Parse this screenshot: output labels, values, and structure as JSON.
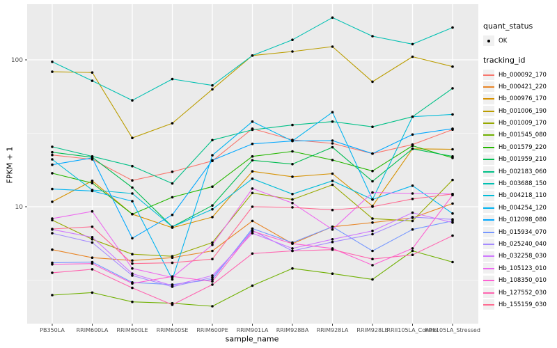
{
  "figure": {
    "xlabel": "sample_name",
    "ylabel": "FPKM + 1"
  },
  "legend": {
    "quant_status_title": "quant_status",
    "quant_status_items": [
      {
        "label": "OK",
        "shape": "point",
        "color": "#000000"
      }
    ],
    "tracking_id_title": "tracking_id"
  },
  "chart_data": {
    "type": "line",
    "title": "",
    "xlabel": "sample_name",
    "ylabel": "FPKM + 1",
    "y_scale": "log10",
    "y_major_ticks": [
      100,
      10
    ],
    "y_minor_gridlines": [
      31.623,
      3.162
    ],
    "ylim": [
      1.45,
      230
    ],
    "grid": true,
    "legend_position": "right",
    "panel_background": "#EBEBEB",
    "gridline_color": "#FFFFFF",
    "point_color": "#000000",
    "tick_label_color": "#4D4D4D",
    "categories": [
      "PB350LA",
      "RRIM600LA",
      "RRIM600LE",
      "RRIM600SE",
      "RRIM600PE",
      "RRIM901LA",
      "RRIM928BA",
      "RRIM928LA",
      "RRIM928LE",
      "RRII105LA_Control",
      "RRII105LA_Stressed"
    ],
    "series": [
      {
        "name": "Hb_000092_170",
        "color": "#F8766D",
        "values": [
          22.5,
          21.0,
          15.1,
          17.3,
          20.5,
          34.0,
          28.5,
          27.0,
          23.0,
          26.5,
          33.5
        ]
      },
      {
        "name": "Hb_000421_220",
        "color": "#E88526",
        "values": [
          5.1,
          4.5,
          4.3,
          4.5,
          5.0,
          8.0,
          5.6,
          7.3,
          7.8,
          8.4,
          10.5
        ]
      },
      {
        "name": "Hb_000976_170",
        "color": "#D69100",
        "values": [
          10.8,
          15.0,
          8.9,
          7.2,
          8.5,
          17.4,
          16.0,
          16.8,
          10.1,
          24.8,
          24.6
        ]
      },
      {
        "name": "Hb_001006_190",
        "color": "#BB9D00",
        "values": [
          83,
          82,
          29.4,
          37,
          63,
          107,
          114,
          123,
          71,
          105,
          90
        ]
      },
      {
        "name": "Hb_001009_170",
        "color": "#97A900",
        "values": [
          8.1,
          6.0,
          4.75,
          4.6,
          5.7,
          12.4,
          11.2,
          14.1,
          8.3,
          8.0,
          15.2
        ]
      },
      {
        "name": "Hb_001545_080",
        "color": "#6FB000",
        "values": [
          2.5,
          2.6,
          2.25,
          2.2,
          2.1,
          2.9,
          3.8,
          3.5,
          3.2,
          5.0,
          4.2
        ]
      },
      {
        "name": "Hb_001579_220",
        "color": "#24B700",
        "values": [
          16.9,
          14.5,
          8.9,
          11.6,
          13.7,
          22.0,
          23.8,
          20.8,
          17.5,
          26.0,
          21.5
        ]
      },
      {
        "name": "Hb_001959_210",
        "color": "#00BC51",
        "values": [
          23.5,
          21.7,
          13.5,
          7.3,
          10.2,
          20.7,
          19.5,
          25.4,
          14.9,
          24.8,
          22.0
        ]
      },
      {
        "name": "Hb_002183_060",
        "color": "#00C087",
        "values": [
          25.6,
          22.0,
          18.9,
          14.4,
          28.4,
          33.4,
          36.0,
          38.0,
          35.0,
          41.0,
          64.0
        ]
      },
      {
        "name": "Hb_003688_150",
        "color": "#00C0B2",
        "values": [
          97,
          72,
          53,
          74,
          67,
          107,
          137,
          194,
          145,
          128,
          166
        ]
      },
      {
        "name": "Hb_004218_110",
        "color": "#00BCD8",
        "values": [
          21.0,
          13.0,
          12.3,
          7.3,
          9.6,
          15.5,
          12.2,
          15.0,
          11.2,
          41.0,
          42.5
        ]
      },
      {
        "name": "Hb_004254_120",
        "color": "#00B3F0",
        "values": [
          13.2,
          12.8,
          10.9,
          3.2,
          22.4,
          38.0,
          28.0,
          44.0,
          11.2,
          13.9,
          9.0
        ]
      },
      {
        "name": "Hb_012098_080",
        "color": "#00A7FF",
        "values": [
          19.3,
          21.5,
          6.1,
          8.8,
          20.7,
          26.8,
          28.0,
          28.2,
          23.0,
          31.0,
          34.0
        ]
      },
      {
        "name": "Hb_015934_070",
        "color": "#7697FF",
        "values": [
          4.15,
          4.2,
          3.05,
          2.95,
          3.2,
          7.1,
          5.7,
          7.3,
          5.0,
          7.0,
          8.0
        ]
      },
      {
        "name": "Hb_025240_040",
        "color": "#A58AFF",
        "values": [
          6.6,
          5.7,
          3.4,
          2.85,
          3.3,
          6.9,
          5.0,
          5.75,
          6.5,
          8.5,
          8.2
        ]
      },
      {
        "name": "Hb_032258_030",
        "color": "#CF78FF",
        "values": [
          7.0,
          6.2,
          3.5,
          2.9,
          3.4,
          6.6,
          5.2,
          6.0,
          6.85,
          9.1,
          7.8
        ]
      },
      {
        "name": "Hb_105123_010",
        "color": "#EC69EF",
        "values": [
          8.3,
          9.3,
          3.8,
          3.3,
          5.5,
          13.3,
          10.6,
          7.0,
          12.5,
          12.3,
          12.2
        ]
      },
      {
        "name": "Hb_108350_010",
        "color": "#FD61D3",
        "values": [
          4.05,
          4.1,
          3.0,
          3.35,
          3.1,
          6.8,
          5.6,
          5.2,
          4.0,
          5.2,
          12.0
        ]
      },
      {
        "name": "Hb_127552_030",
        "color": "#FF64B0",
        "values": [
          3.55,
          3.75,
          2.8,
          2.15,
          2.95,
          4.8,
          5.0,
          5.1,
          4.4,
          4.7,
          6.35
        ]
      },
      {
        "name": "Hb_155159_030",
        "color": "#FF6C92",
        "values": [
          7.05,
          7.3,
          4.1,
          4.15,
          4.4,
          10.0,
          9.9,
          9.5,
          10.0,
          11.3,
          12.2
        ]
      }
    ]
  }
}
